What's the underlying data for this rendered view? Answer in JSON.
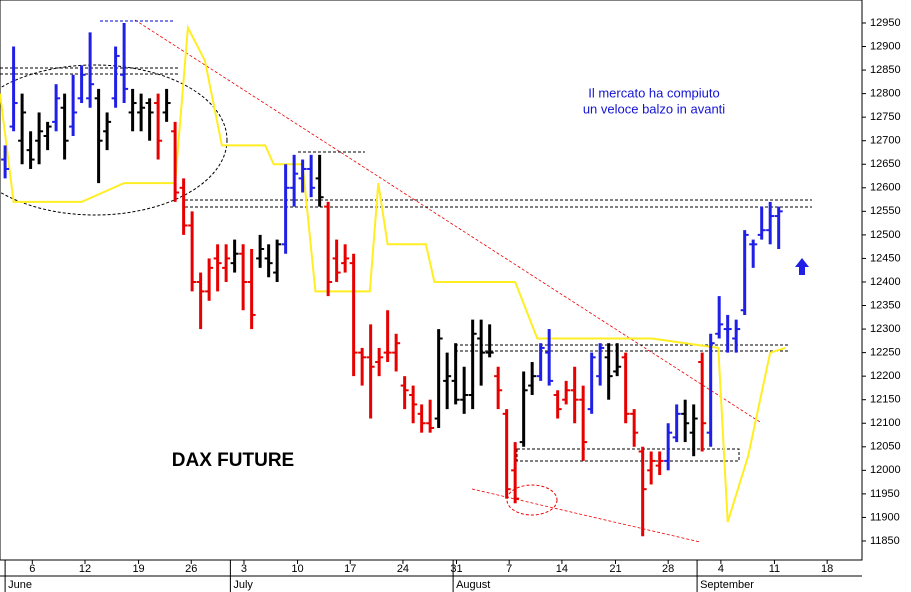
{
  "chart_data": {
    "type": "ohlc",
    "title": "DAX FUTURE",
    "annotations": [
      "Il mercato ha compiuto",
      "un veloce balzo in avanti"
    ],
    "x": [
      0,
      1,
      2,
      3,
      4,
      5,
      6,
      7,
      8,
      9,
      10,
      11,
      12,
      13,
      14,
      15,
      16,
      17,
      18,
      19,
      20,
      21,
      22,
      23,
      24,
      25,
      26,
      27,
      28,
      29,
      30,
      31,
      32,
      33,
      34,
      35,
      36,
      37,
      38,
      39,
      40,
      41,
      42,
      43,
      44,
      45,
      46,
      47,
      48,
      49,
      50,
      51,
      52,
      53,
      54,
      55,
      56,
      57,
      58,
      59,
      60,
      61,
      62,
      63,
      64,
      65,
      66,
      67,
      68,
      69,
      70,
      71,
      72,
      73,
      74,
      75,
      76,
      77,
      78,
      79,
      80,
      81,
      82,
      83,
      84,
      85,
      86,
      87,
      88,
      89,
      90,
      91
    ],
    "high": [
      12690,
      12900,
      12800,
      12720,
      12760,
      12740,
      12820,
      12800,
      12840,
      12860,
      12930,
      12810,
      12760,
      12900,
      12950,
      12810,
      12800,
      12790,
      12800,
      12810,
      12740,
      12620,
      12550,
      12420,
      12450,
      12480,
      12480,
      12490,
      12480,
      12470,
      12500,
      12480,
      12490,
      12650,
      12670,
      12660,
      12670,
      12670,
      12570,
      12490,
      12480,
      12460,
      12260,
      12310,
      12260,
      12340,
      12290,
      12200,
      12180,
      12140,
      12150,
      12300,
      12250,
      12270,
      12220,
      12320,
      12320,
      12310,
      12220,
      12130,
      12060,
      12210,
      12230,
      12270,
      12300,
      12170,
      12190,
      12220,
      12180,
      12250,
      12270,
      12270,
      12270,
      12250,
      12130,
      12050,
      12040,
      12040,
      12100,
      12140,
      12150,
      12140,
      12250,
      12290,
      12370,
      12330,
      12320,
      12510,
      12490,
      12560,
      12570,
      12560
    ],
    "low": [
      12620,
      12720,
      12650,
      12640,
      12650,
      12680,
      12720,
      12660,
      12710,
      12780,
      12770,
      12610,
      12680,
      12770,
      12780,
      12720,
      12720,
      12700,
      12660,
      12740,
      12570,
      12500,
      12380,
      12300,
      12360,
      12380,
      12400,
      12420,
      12340,
      12300,
      12430,
      12410,
      12400,
      12460,
      12560,
      12590,
      12580,
      12560,
      12370,
      12400,
      12420,
      12200,
      12180,
      12110,
      12200,
      12230,
      12210,
      12130,
      12100,
      12080,
      12080,
      12090,
      12130,
      12140,
      12120,
      12130,
      12180,
      12240,
      12130,
      11940,
      11930,
      12050,
      12160,
      12190,
      12180,
      12110,
      12140,
      12100,
      12020,
      12120,
      12180,
      12150,
      12200,
      12100,
      12050,
      11860,
      11970,
      11990,
      12000,
      12060,
      12060,
      12030,
      12040,
      12050,
      12280,
      12250,
      12250,
      12330,
      12430,
      12490,
      12480,
      12470
    ],
    "open": [
      12660,
      12730,
      12700,
      12680,
      12700,
      12710,
      12740,
      12770,
      12730,
      12790,
      12790,
      12790,
      12720,
      12790,
      12840,
      12760,
      12760,
      12780,
      12780,
      12760,
      12720,
      12600,
      12520,
      12400,
      12380,
      12450,
      12430,
      12440,
      12460,
      12400,
      12450,
      12450,
      12420,
      12480,
      12600,
      12620,
      12640,
      12620,
      12560,
      12450,
      12440,
      12440,
      12250,
      12240,
      12230,
      12250,
      12250,
      12180,
      12160,
      12120,
      12100,
      12110,
      12190,
      12190,
      12150,
      12160,
      12280,
      12250,
      12200,
      12120,
      12000,
      12060,
      12180,
      12200,
      12250,
      12160,
      12150,
      12170,
      12150,
      12130,
      12200,
      12240,
      12210,
      12240,
      12120,
      12040,
      12000,
      12010,
      12020,
      12070,
      12120,
      12080,
      12230,
      12080,
      12290,
      12300,
      12280,
      12340,
      12480,
      12500,
      12510,
      12540
    ],
    "close": [
      12640,
      12780,
      12760,
      12660,
      12720,
      12730,
      12790,
      12700,
      12760,
      12840,
      12820,
      12700,
      12740,
      12880,
      12810,
      12780,
      12770,
      12760,
      12700,
      12780,
      12590,
      12520,
      12400,
      12380,
      12430,
      12440,
      12450,
      12460,
      12400,
      12330,
      12470,
      12440,
      12480,
      12600,
      12630,
      12640,
      12600,
      12580,
      12400,
      12420,
      12450,
      12250,
      12240,
      12220,
      12240,
      12250,
      12270,
      12170,
      12140,
      12100,
      12090,
      12280,
      12200,
      12150,
      12160,
      12290,
      12250,
      12250,
      12170,
      11960,
      11940,
      12170,
      12200,
      12260,
      12190,
      12130,
      12170,
      12150,
      12060,
      12240,
      12260,
      12200,
      12220,
      12120,
      12080,
      11960,
      12020,
      12020,
      12080,
      12120,
      12100,
      12110,
      12100,
      12270,
      12310,
      12300,
      12300,
      12500,
      12480,
      12510,
      12540,
      12550
    ],
    "bar_colors": [
      "#1f1fe6",
      "#1f1fe6",
      "#000000",
      "#000000",
      "#000000",
      "#000000",
      "#1f1fe6",
      "#000000",
      "#1f1fe6",
      "#1f1fe6",
      "#1f1fe6",
      "#000000",
      "#000000",
      "#1f1fe6",
      "#1f1fe6",
      "#000000",
      "#000000",
      "#000000",
      "#e60000",
      "#000000",
      "#e60000",
      "#e60000",
      "#e60000",
      "#e60000",
      "#e60000",
      "#e60000",
      "#e60000",
      "#000000",
      "#e60000",
      "#e60000",
      "#000000",
      "#000000",
      "#000000",
      "#1f1fe6",
      "#1f1fe6",
      "#1f1fe6",
      "#1f1fe6",
      "#000000",
      "#e60000",
      "#e60000",
      "#e60000",
      "#e60000",
      "#e60000",
      "#e60000",
      "#e60000",
      "#e60000",
      "#e60000",
      "#e60000",
      "#e60000",
      "#e60000",
      "#e60000",
      "#000000",
      "#000000",
      "#000000",
      "#000000",
      "#000000",
      "#000000",
      "#000000",
      "#e60000",
      "#e60000",
      "#e60000",
      "#000000",
      "#000000",
      "#1f1fe6",
      "#1f1fe6",
      "#e60000",
      "#e60000",
      "#e60000",
      "#e60000",
      "#1f1fe6",
      "#1f1fe6",
      "#000000",
      "#000000",
      "#e60000",
      "#e60000",
      "#e60000",
      "#e60000",
      "#e60000",
      "#1f1fe6",
      "#1f1fe6",
      "#000000",
      "#000000",
      "#e60000",
      "#1f1fe6",
      "#1f1fe6",
      "#1f1fe6",
      "#1f1fe6",
      "#1f1fe6",
      "#1f1fe6",
      "#1f1fe6",
      "#1f1fe6",
      "#1f1fe6"
    ],
    "overlay": {
      "color": "#ffee22",
      "x": [
        -0.6,
        1,
        9,
        14,
        20,
        21.5,
        23.5,
        25.5,
        30.6,
        31.6,
        35,
        36.5,
        42.9,
        43.9,
        45,
        49.5,
        50.5,
        60,
        62.6,
        76.1,
        83.9,
        85,
        87.4,
        90,
        91.8
      ],
      "values": [
        12800,
        12570,
        12570,
        12610,
        12610,
        12940,
        12870,
        12690,
        12690,
        12650,
        12650,
        12380,
        12380,
        12610,
        12480,
        12480,
        12400,
        12400,
        12280,
        12280,
        12260,
        11890,
        12030,
        12250,
        12260
      ]
    },
    "xlim": [
      -0.6,
      100.8
    ],
    "ylim": [
      11809.6,
      12998.8
    ],
    "xticks": [
      {
        "value": 3.2,
        "label": "6"
      },
      {
        "value": 9.4,
        "label": "12"
      },
      {
        "value": 15.7,
        "label": "19"
      },
      {
        "value": 21.9,
        "label": "26"
      },
      {
        "value": 28.1,
        "label": "3"
      },
      {
        "value": 34.4,
        "label": "10"
      },
      {
        "value": 40.6,
        "label": "17"
      },
      {
        "value": 46.8,
        "label": "24"
      },
      {
        "value": 53.1,
        "label": "31"
      },
      {
        "value": 59.3,
        "label": "7"
      },
      {
        "value": 65.5,
        "label": "14"
      },
      {
        "value": 71.8,
        "label": "21"
      },
      {
        "value": 78,
        "label": "28"
      },
      {
        "value": 84.2,
        "label": "4"
      },
      {
        "value": 90.5,
        "label": "11"
      },
      {
        "value": 96.7,
        "label": "18"
      }
    ],
    "month_ticks": [
      {
        "value": 0,
        "label": "June"
      },
      {
        "value": 26.5,
        "label": "July"
      },
      {
        "value": 52.7,
        "label": "August"
      },
      {
        "value": 81.4,
        "label": "September"
      }
    ],
    "yticks": [
      11850,
      11900,
      11950,
      12000,
      12050,
      12100,
      12150,
      12200,
      12250,
      12300,
      12350,
      12400,
      12450,
      12500,
      12550,
      12600,
      12650,
      12700,
      12750,
      12800,
      12850,
      12900,
      12950
    ]
  }
}
